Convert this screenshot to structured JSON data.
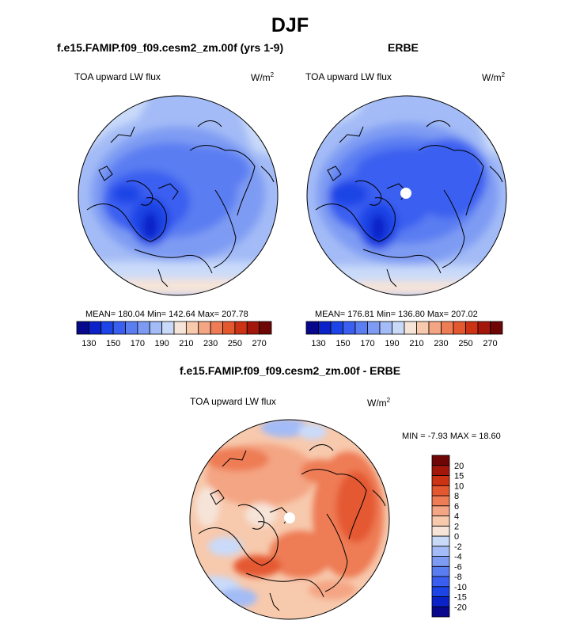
{
  "figure": {
    "main_title": "DJF"
  },
  "chart_data": [
    {
      "type": "polar-contour-map",
      "panel": "model",
      "title": "f.e15.FAMIP.f09_f09.cesm2_zm.00f (yrs 1-9)",
      "variable": "TOA upward LW flux",
      "units": "W/m",
      "units_exp": "2",
      "stats": {
        "label": "MEAN= 180.04  Min= 142.64  Max= 207.78",
        "mean": 180.04,
        "min": 142.64,
        "max": 207.78
      },
      "colorbar": {
        "orientation": "horizontal",
        "levels": [
          130,
          140,
          150,
          160,
          170,
          180,
          190,
          200,
          210,
          220,
          230,
          240,
          250,
          260,
          270
        ],
        "tick_labels": [
          "130",
          "150",
          "170",
          "190",
          "210",
          "230",
          "250",
          "270"
        ],
        "colors": [
          "#08088c",
          "#0b22c9",
          "#1c44e6",
          "#3a5ff0",
          "#5a7df2",
          "#7e9bf3",
          "#a3bbf6",
          "#c9daf9",
          "#f6e4d8",
          "#f7c9ad",
          "#f4a583",
          "#ee7c55",
          "#e45830",
          "#cc3214",
          "#a3170b",
          "#6e0606"
        ]
      }
    },
    {
      "type": "polar-contour-map",
      "panel": "obs",
      "title": "ERBE",
      "variable": "TOA upward LW flux",
      "units": "W/m",
      "units_exp": "2",
      "stats": {
        "label": "MEAN= 176.81  Min= 136.80  Max= 207.02",
        "mean": 176.81,
        "min": 136.8,
        "max": 207.02
      },
      "colorbar": {
        "orientation": "horizontal",
        "levels": [
          130,
          140,
          150,
          160,
          170,
          180,
          190,
          200,
          210,
          220,
          230,
          240,
          250,
          260,
          270
        ],
        "tick_labels": [
          "130",
          "150",
          "170",
          "190",
          "210",
          "230",
          "250",
          "270"
        ],
        "colors": [
          "#08088c",
          "#0b22c9",
          "#1c44e6",
          "#3a5ff0",
          "#5a7df2",
          "#7e9bf3",
          "#a3bbf6",
          "#c9daf9",
          "#f6e4d8",
          "#f7c9ad",
          "#f4a583",
          "#ee7c55",
          "#e45830",
          "#cc3214",
          "#a3170b",
          "#6e0606"
        ]
      }
    },
    {
      "type": "polar-contour-map",
      "panel": "difference",
      "title": "f.e15.FAMIP.f09_f09.cesm2_zm.00f - ERBE",
      "variable": "TOA upward LW flux",
      "units": "W/m",
      "units_exp": "2",
      "stats": {
        "label": "MIN =  -7.93 MAX =  18.60",
        "min": -7.93,
        "max": 18.6
      },
      "colorbar": {
        "orientation": "vertical",
        "levels": [
          -20,
          -15,
          -10,
          -8,
          -6,
          -4,
          -2,
          0,
          2,
          4,
          6,
          8,
          10,
          15,
          20
        ],
        "tick_labels": [
          "-20",
          "-15",
          "-10",
          "-8",
          "-6",
          "-4",
          "-2",
          "0",
          "2",
          "4",
          "6",
          "8",
          "10",
          "15",
          "20"
        ],
        "colors": [
          "#08088c",
          "#0b22c9",
          "#1c44e6",
          "#3a5ff0",
          "#5a7df2",
          "#7e9bf3",
          "#a3bbf6",
          "#c9daf9",
          "#f6e4d8",
          "#f7c9ad",
          "#f4a583",
          "#ee7c55",
          "#e45830",
          "#cc3214",
          "#a3170b",
          "#6e0606"
        ]
      }
    }
  ]
}
